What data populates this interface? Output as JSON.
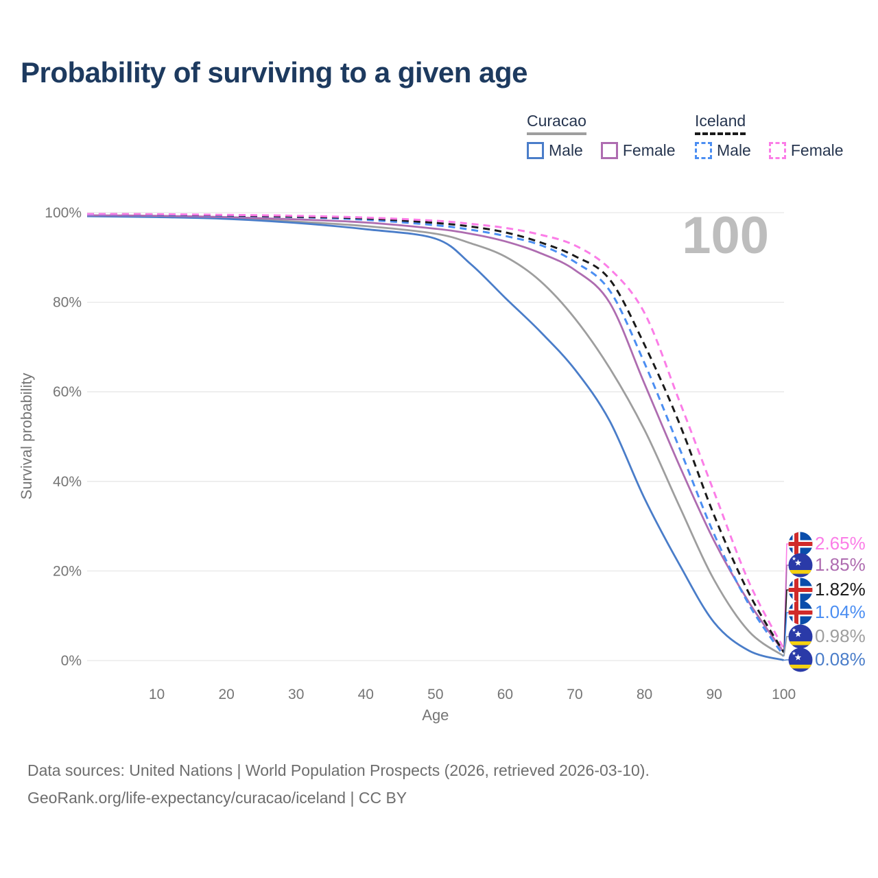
{
  "title": "Probability of surviving to a given age",
  "watermark": "100",
  "legend": {
    "groups": [
      {
        "name": "Curacao",
        "underline": "solid",
        "underline_color": "#9e9e9e",
        "items": [
          {
            "label": "Male",
            "series": "curacao_male"
          },
          {
            "label": "Female",
            "series": "curacao_female"
          }
        ]
      },
      {
        "name": "Iceland",
        "underline": "dashed",
        "underline_color": "#1a1a1a",
        "items": [
          {
            "label": "Male",
            "series": "iceland_male"
          },
          {
            "label": "Female",
            "series": "iceland_female"
          }
        ]
      }
    ]
  },
  "chart_data": {
    "type": "line",
    "title": "Probability of surviving to a given age",
    "xlabel": "Age",
    "ylabel": "Survival probability",
    "xlim": [
      0,
      100
    ],
    "ylim": [
      0,
      100
    ],
    "x_ticks": [
      10,
      20,
      30,
      40,
      50,
      60,
      70,
      80,
      90,
      100
    ],
    "y_ticks": [
      0,
      20,
      40,
      60,
      80,
      100
    ],
    "y_tick_format": "percent",
    "grid": "horizontal",
    "ages": [
      0,
      10,
      20,
      30,
      40,
      50,
      55,
      60,
      65,
      70,
      75,
      80,
      85,
      90,
      95,
      100
    ],
    "series": [
      {
        "id": "curacao_total",
        "name": "Curacao (both sexes)",
        "country": "curacao",
        "color": "#9e9e9e",
        "dash": "solid",
        "end_label": "0.98%",
        "values": [
          99.3,
          99.1,
          98.7,
          98.0,
          97.0,
          95.3,
          93.2,
          90.2,
          84.8,
          76.4,
          65.3,
          51.5,
          34.5,
          18.0,
          6.5,
          0.98
        ]
      },
      {
        "id": "curacao_male",
        "name": "Curacao Male",
        "country": "curacao",
        "color": "#4a7dc9",
        "dash": "solid",
        "end_label": "0.08%",
        "values": [
          99.2,
          99.0,
          98.6,
          97.7,
          96.3,
          94.2,
          88.6,
          81.0,
          73.5,
          65.0,
          53.5,
          36.2,
          21.5,
          8.5,
          2.2,
          0.08
        ]
      },
      {
        "id": "curacao_female",
        "name": "Curacao Female",
        "country": "curacao",
        "color": "#ae6cb0",
        "dash": "solid",
        "end_label": "1.85%",
        "values": [
          99.4,
          99.3,
          99.0,
          98.5,
          97.8,
          96.4,
          95.3,
          93.6,
          91.0,
          87.2,
          79.9,
          61.8,
          43.6,
          26.7,
          13.0,
          1.85
        ]
      },
      {
        "id": "iceland_male",
        "name": "Iceland Male",
        "country": "iceland",
        "color": "#4b8ef2",
        "dash": "dashed",
        "end_label": "1.04%",
        "values": [
          99.6,
          99.5,
          99.3,
          99.0,
          98.4,
          97.2,
          96.2,
          94.8,
          92.8,
          89.0,
          82.6,
          66.4,
          47.5,
          28.2,
          12.5,
          1.04
        ]
      },
      {
        "id": "iceland_total",
        "name": "Iceland (both sexes)",
        "country": "iceland",
        "color": "#1a1a1a",
        "dash": "dashed",
        "end_label": "1.82%",
        "values": [
          99.7,
          99.6,
          99.4,
          99.1,
          98.7,
          97.7,
          96.9,
          95.6,
          93.4,
          90.3,
          85.1,
          70.5,
          53.0,
          32.4,
          15.0,
          1.82
        ]
      },
      {
        "id": "iceland_female",
        "name": "Iceland Female",
        "country": "iceland",
        "color": "#fb7de7",
        "dash": "dashed",
        "end_label": "2.65%",
        "values": [
          99.7,
          99.65,
          99.5,
          99.3,
          98.9,
          98.2,
          97.5,
          96.6,
          95.1,
          92.7,
          87.5,
          77.6,
          58.0,
          37.6,
          17.5,
          2.65
        ]
      }
    ],
    "end_label_order": [
      "iceland_female",
      "curacao_female",
      "iceland_total",
      "iceland_male",
      "curacao_total",
      "curacao_male"
    ]
  },
  "footer": {
    "line1": "Data sources: United Nations | World Population Prospects (2026, retrieved 2026-03-10).",
    "line2": "GeoRank.org/life-expectancy/curacao/iceland | CC BY"
  },
  "colors": {
    "title_text": "#1d3a5f",
    "axis_text": "#757575",
    "gridline": "#e7e7e7",
    "watermark": "#bdbdbd",
    "footer_text": "#6d6d6d",
    "iceland_flag_blue": "#0a4dab",
    "iceland_flag_red": "#d02a2a",
    "curacao_flag_blue": "#2a3aa8",
    "curacao_flag_yellow": "#f5d110"
  }
}
